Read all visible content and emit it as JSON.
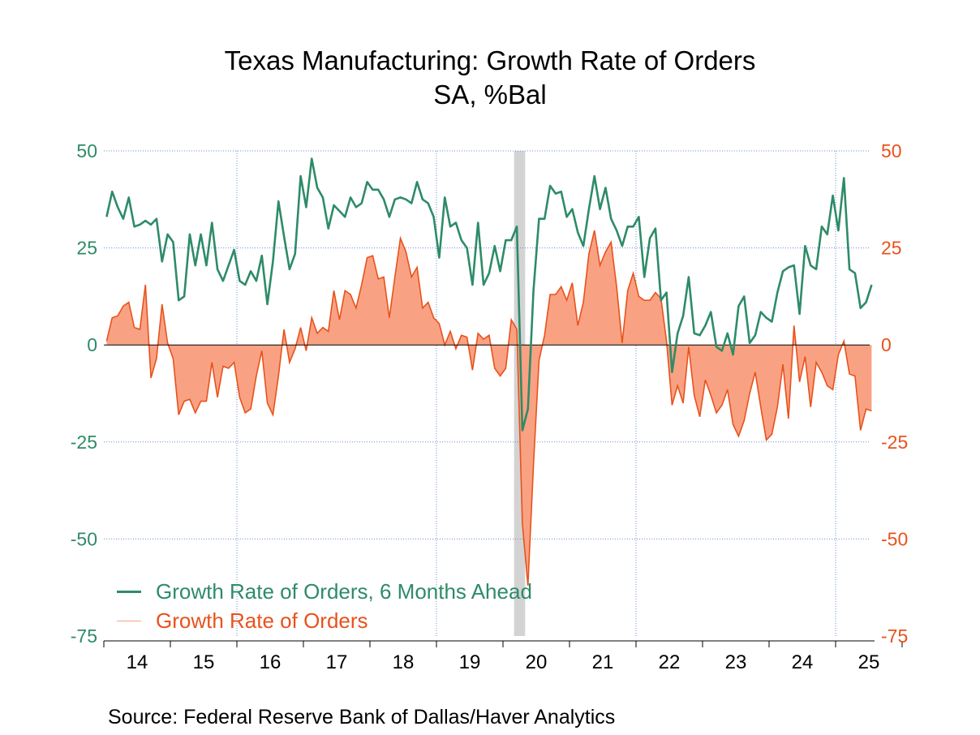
{
  "title": "Texas Manufacturing: Growth Rate of Orders",
  "subtitle": "SA, %Bal",
  "source": "Source:  Federal Reserve Bank of Dallas/Haver Analytics",
  "legend": {
    "ahead_label": "Growth Rate of Orders, 6 Months Ahead",
    "orders_label": "Growth Rate of Orders"
  },
  "colors": {
    "ahead": "#2e8b68",
    "orders": "#e8521c",
    "orders_fill": "#f9a283",
    "recession": "#d3d3d3",
    "grid": "#6a8fd0"
  },
  "chart_data": {
    "type": "line",
    "x_start": "2014-01",
    "frequency": "monthly",
    "x_tick_labels": [
      "14",
      "15",
      "16",
      "17",
      "18",
      "19",
      "20",
      "21",
      "22",
      "23",
      "24",
      "25"
    ],
    "y_left_ticks": [
      "50",
      "25",
      "0",
      "-25",
      "-50",
      "-75"
    ],
    "y_right_ticks": [
      "50",
      "25",
      "0",
      "-25",
      "-50",
      "-75"
    ],
    "ylim": [
      -75,
      50
    ],
    "grid": true,
    "zero_line": true,
    "recession_shading": [
      {
        "start": "2020-03",
        "end": "2020-04"
      }
    ],
    "legend_position": "bottom-left",
    "series": [
      {
        "name": "Growth Rate of Orders, 6 Months Ahead",
        "style": "line",
        "axis": "left",
        "values": [
          33.0,
          39.5,
          35.5,
          32.5,
          38.0,
          30.5,
          31.0,
          32.0,
          31.0,
          32.5,
          21.5,
          28.5,
          26.5,
          11.5,
          12.5,
          28.5,
          20.5,
          28.5,
          20.5,
          31.5,
          19.5,
          16.5,
          20.5,
          24.5,
          16.5,
          15.5,
          19.0,
          16.5,
          23.0,
          10.5,
          21.5,
          37.0,
          28.0,
          19.5,
          23.5,
          43.5,
          35.5,
          48.0,
          40.5,
          38.0,
          30.0,
          36.0,
          34.5,
          33.0,
          38.0,
          35.5,
          36.5,
          42.0,
          40.0,
          40.0,
          37.5,
          33.0,
          37.5,
          38.0,
          37.5,
          36.5,
          42.0,
          37.5,
          36.5,
          33.0,
          22.5,
          38.0,
          30.5,
          31.5,
          27.0,
          25.0,
          15.5,
          31.5,
          15.5,
          18.5,
          25.5,
          19.0,
          27.0,
          27.0,
          30.5,
          -22.0,
          -16.5,
          14.0,
          32.5,
          32.5,
          41.0,
          39.0,
          39.5,
          33.0,
          35.0,
          29.0,
          25.5,
          35.0,
          43.5,
          35.0,
          40.5,
          32.5,
          29.5,
          25.5,
          30.5,
          30.5,
          33.0,
          17.5,
          27.5,
          30.0,
          11.5,
          13.5,
          -7.0,
          3.0,
          7.5,
          17.5,
          3.0,
          2.5,
          5.0,
          8.5,
          -0.5,
          -1.5,
          3.0,
          -2.5,
          10.0,
          12.5,
          0.5,
          2.5,
          8.5,
          7.0,
          6.0,
          13.5,
          19.0,
          20.0,
          20.5,
          8.0,
          25.5,
          20.5,
          19.5,
          30.5,
          28.5,
          38.5,
          29.5,
          43.0,
          19.5,
          18.5,
          9.5,
          11.0,
          15.5
        ]
      },
      {
        "name": "Growth Rate of Orders",
        "style": "area",
        "axis": "right",
        "values": [
          1.0,
          7.0,
          7.5,
          10.0,
          11.0,
          4.5,
          4.0,
          15.5,
          -8.5,
          -3.5,
          10.5,
          0.5,
          -3.5,
          -18.0,
          -14.5,
          -14.0,
          -17.5,
          -14.5,
          -14.5,
          -4.5,
          -13.5,
          -5.5,
          -6.0,
          -4.5,
          -13.5,
          -17.5,
          -16.5,
          -8.0,
          -1.5,
          -15.0,
          -18.0,
          -8.0,
          4.0,
          -4.5,
          -1.0,
          4.5,
          -1.5,
          7.0,
          3.0,
          4.5,
          3.5,
          14.0,
          6.5,
          14.0,
          13.0,
          9.5,
          15.5,
          22.5,
          23.0,
          17.0,
          17.5,
          7.0,
          17.5,
          27.5,
          24.0,
          17.5,
          20.0,
          9.5,
          11.0,
          7.0,
          5.5,
          0.0,
          3.5,
          -1.0,
          2.5,
          2.0,
          -6.5,
          3.0,
          1.5,
          2.5,
          -6.0,
          -8.0,
          -6.0,
          6.5,
          4.0,
          -46.0,
          -62.0,
          -31.0,
          -4.0,
          2.5,
          13.0,
          13.0,
          15.0,
          11.5,
          16.0,
          5.0,
          11.0,
          23.5,
          29.5,
          20.5,
          24.0,
          26.5,
          15.0,
          0.5,
          14.0,
          18.5,
          12.5,
          11.5,
          11.5,
          13.5,
          12.0,
          1.0,
          -15.5,
          -10.5,
          -15.0,
          -0.5,
          -13.0,
          -18.5,
          -9.0,
          -13.0,
          -17.5,
          -15.5,
          -11.5,
          -20.5,
          -23.5,
          -19.5,
          -12.5,
          -7.0,
          -16.0,
          -24.5,
          -23.0,
          -16.0,
          -5.0,
          -19.0,
          5.0,
          -9.5,
          -3.0,
          -16.0,
          -4.5,
          -7.0,
          -10.5,
          -11.5,
          -2.5,
          1.0,
          -7.5,
          -8.0,
          -22.0,
          -16.5,
          -17.0
        ]
      }
    ]
  }
}
